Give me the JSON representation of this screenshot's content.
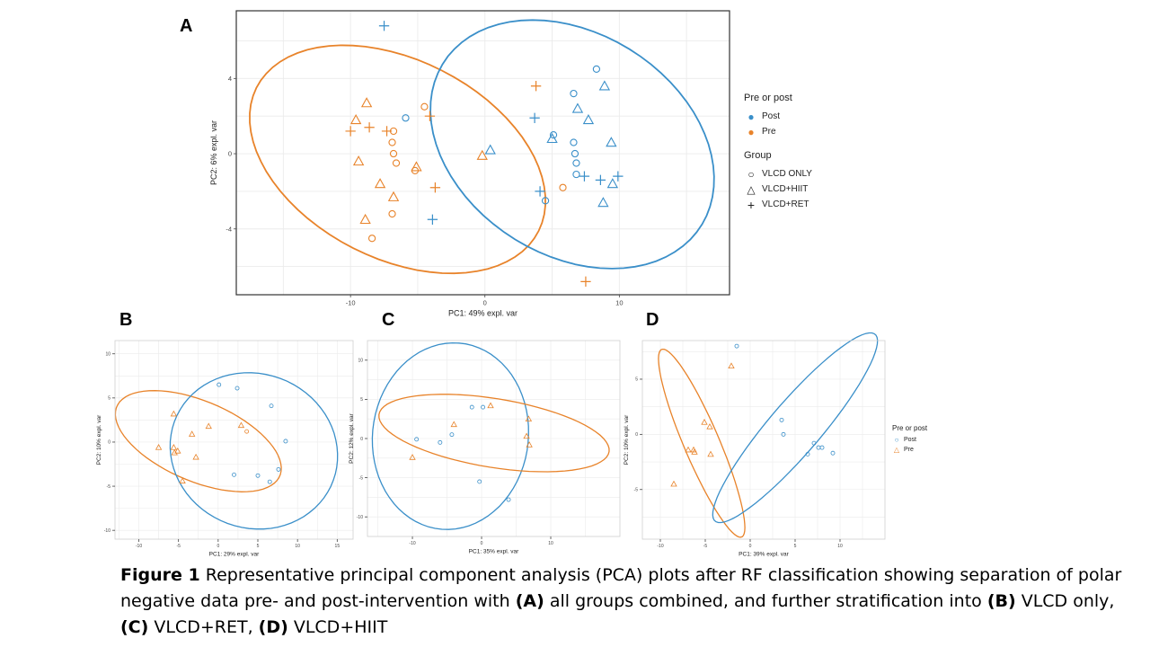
{
  "panel_labels": {
    "a": "A",
    "b": "B",
    "c": "C",
    "d": "D"
  },
  "caption": {
    "fig": "Figure 1",
    "t1": " Representative principal component analysis (PCA) plots after RF classification showing separation of polar negative data pre- and post-intervention with ",
    "la": "(A)",
    "t2": " all groups combined, and further stratification into ",
    "lb": "(B)",
    "t3": " VLCD only, ",
    "lc": "(C)",
    "t4": " VLCD+RET, ",
    "ld": "(D)",
    "t5": " VLCD+HIIT"
  },
  "legend_a": {
    "title1": "Pre or post",
    "post": "Post",
    "pre": "Pre",
    "title2": "Group",
    "g1": "VLCD ONLY",
    "g2": "VLCD+HIIT",
    "g3": "VLCD+RET"
  },
  "legend_d": {
    "title": "Pre or post",
    "post": "Post",
    "pre": "Pre"
  },
  "colors": {
    "post": "#3a8fc9",
    "pre": "#e8832a",
    "grid": "#ebebeb",
    "border": "#333333"
  },
  "chart_data": [
    {
      "id": "A",
      "type": "scatter",
      "xlabel": "PC1: 49% expl. var",
      "ylabel": "PC2: 6% expl. var",
      "xlim": [
        -18.5,
        18.2
      ],
      "ylim": [
        -7.5,
        7.6
      ],
      "xticks": [
        -10,
        0,
        10
      ],
      "yticks": [
        -4,
        0,
        4
      ],
      "grid": true,
      "legend": "right",
      "ellipses": [
        {
          "group": "Pre",
          "cx": -6.5,
          "cy": -0.3,
          "rx": 11.3,
          "ry": 5.5,
          "angle": -15
        },
        {
          "group": "Post",
          "cx": 6.5,
          "cy": 0.5,
          "rx": 10.8,
          "ry": 6.2,
          "angle": -15
        }
      ],
      "points": [
        {
          "group": "Post",
          "shape": "circle",
          "x": 8.3,
          "y": 4.5
        },
        {
          "group": "Post",
          "shape": "circle",
          "x": 6.6,
          "y": 3.2
        },
        {
          "group": "Post",
          "shape": "circle",
          "x": 5.1,
          "y": 1.0
        },
        {
          "group": "Post",
          "shape": "circle",
          "x": 6.6,
          "y": 0.6
        },
        {
          "group": "Post",
          "shape": "circle",
          "x": 6.7,
          "y": 0.0
        },
        {
          "group": "Post",
          "shape": "circle",
          "x": 6.8,
          "y": -0.5
        },
        {
          "group": "Post",
          "shape": "circle",
          "x": 6.8,
          "y": -1.1
        },
        {
          "group": "Post",
          "shape": "circle",
          "x": 4.5,
          "y": -2.5
        },
        {
          "group": "Post",
          "shape": "circle",
          "x": -5.9,
          "y": 1.9
        },
        {
          "group": "Post",
          "shape": "triangle",
          "x": 8.9,
          "y": 3.6
        },
        {
          "group": "Post",
          "shape": "triangle",
          "x": 6.9,
          "y": 2.4
        },
        {
          "group": "Post",
          "shape": "triangle",
          "x": 7.7,
          "y": 1.8
        },
        {
          "group": "Post",
          "shape": "triangle",
          "x": 5.0,
          "y": 0.8
        },
        {
          "group": "Post",
          "shape": "triangle",
          "x": 9.4,
          "y": 0.6
        },
        {
          "group": "Post",
          "shape": "triangle",
          "x": 0.4,
          "y": 0.2
        },
        {
          "group": "Post",
          "shape": "triangle",
          "x": 9.5,
          "y": -1.6
        },
        {
          "group": "Post",
          "shape": "triangle",
          "x": 8.8,
          "y": -2.6
        },
        {
          "group": "Post",
          "shape": "plus",
          "x": -7.5,
          "y": 6.8
        },
        {
          "group": "Post",
          "shape": "plus",
          "x": 3.7,
          "y": 1.9
        },
        {
          "group": "Post",
          "shape": "plus",
          "x": 7.4,
          "y": -1.2
        },
        {
          "group": "Post",
          "shape": "plus",
          "x": 8.6,
          "y": -1.4
        },
        {
          "group": "Post",
          "shape": "plus",
          "x": 9.9,
          "y": -1.2
        },
        {
          "group": "Post",
          "shape": "plus",
          "x": 4.1,
          "y": -2.0
        },
        {
          "group": "Post",
          "shape": "plus",
          "x": -3.9,
          "y": -3.5
        },
        {
          "group": "Pre",
          "shape": "circle",
          "x": -4.5,
          "y": 2.5
        },
        {
          "group": "Pre",
          "shape": "circle",
          "x": -6.8,
          "y": 1.2
        },
        {
          "group": "Pre",
          "shape": "circle",
          "x": -6.9,
          "y": 0.6
        },
        {
          "group": "Pre",
          "shape": "circle",
          "x": -6.8,
          "y": 0.0
        },
        {
          "group": "Pre",
          "shape": "circle",
          "x": -6.6,
          "y": -0.5
        },
        {
          "group": "Pre",
          "shape": "circle",
          "x": -5.2,
          "y": -0.9
        },
        {
          "group": "Pre",
          "shape": "circle",
          "x": -6.9,
          "y": -3.2
        },
        {
          "group": "Pre",
          "shape": "circle",
          "x": -8.4,
          "y": -4.5
        },
        {
          "group": "Pre",
          "shape": "circle",
          "x": 5.8,
          "y": -1.8
        },
        {
          "group": "Pre",
          "shape": "triangle",
          "x": -8.8,
          "y": 2.7
        },
        {
          "group": "Pre",
          "shape": "triangle",
          "x": -9.6,
          "y": 1.8
        },
        {
          "group": "Pre",
          "shape": "triangle",
          "x": -9.4,
          "y": -0.4
        },
        {
          "group": "Pre",
          "shape": "triangle",
          "x": -5.1,
          "y": -0.7
        },
        {
          "group": "Pre",
          "shape": "triangle",
          "x": -0.2,
          "y": -0.1
        },
        {
          "group": "Pre",
          "shape": "triangle",
          "x": -7.8,
          "y": -1.6
        },
        {
          "group": "Pre",
          "shape": "triangle",
          "x": -6.8,
          "y": -2.3
        },
        {
          "group": "Pre",
          "shape": "triangle",
          "x": -8.9,
          "y": -3.5
        },
        {
          "group": "Pre",
          "shape": "plus",
          "x": -10.0,
          "y": 1.2
        },
        {
          "group": "Pre",
          "shape": "plus",
          "x": -8.6,
          "y": 1.4
        },
        {
          "group": "Pre",
          "shape": "plus",
          "x": -7.3,
          "y": 1.2
        },
        {
          "group": "Pre",
          "shape": "plus",
          "x": -4.1,
          "y": 2.0
        },
        {
          "group": "Pre",
          "shape": "plus",
          "x": 3.8,
          "y": 3.6
        },
        {
          "group": "Pre",
          "shape": "plus",
          "x": -3.7,
          "y": -1.8
        },
        {
          "group": "Pre",
          "shape": "plus",
          "x": 7.5,
          "y": -6.8
        }
      ]
    },
    {
      "id": "B",
      "type": "scatter",
      "xlabel": "PC1: 29% expl. var",
      "ylabel": "PC2: 10% expl. var",
      "xlim": [
        -13,
        17
      ],
      "ylim": [
        -11,
        11.5
      ],
      "xticks": [
        -10,
        -5,
        0,
        5,
        10,
        15
      ],
      "yticks": [
        -10,
        -5,
        0,
        5,
        10
      ],
      "grid": true,
      "legend": "none",
      "ellipses": [
        {
          "group": "Pre",
          "cx": -2.5,
          "cy": 0.1,
          "rx": 11.0,
          "ry": 4.6,
          "angle": -20
        },
        {
          "group": "Post",
          "cx": 4.5,
          "cy": -1.0,
          "rx": 10.6,
          "ry": 8.8,
          "angle": -10
        }
      ],
      "points": [
        {
          "group": "Post",
          "shape": "circle",
          "x": 0.1,
          "y": 6.5
        },
        {
          "group": "Post",
          "shape": "circle",
          "x": 2.4,
          "y": 6.1
        },
        {
          "group": "Post",
          "shape": "circle",
          "x": 6.7,
          "y": 4.1
        },
        {
          "group": "Post",
          "shape": "circle",
          "x": 8.5,
          "y": 0.1
        },
        {
          "group": "Post",
          "shape": "circle",
          "x": 7.6,
          "y": -3.1
        },
        {
          "group": "Post",
          "shape": "circle",
          "x": 5.0,
          "y": -3.8
        },
        {
          "group": "Post",
          "shape": "circle",
          "x": 6.5,
          "y": -4.5
        },
        {
          "group": "Post",
          "shape": "circle",
          "x": 2.0,
          "y": -3.7
        },
        {
          "group": "Pre",
          "shape": "triangle",
          "x": -5.6,
          "y": 3.2
        },
        {
          "group": "Pre",
          "shape": "triangle",
          "x": -1.2,
          "y": 1.8
        },
        {
          "group": "Pre",
          "shape": "triangle",
          "x": 2.9,
          "y": 1.9
        },
        {
          "group": "Pre",
          "shape": "triangle",
          "x": -3.3,
          "y": 0.9
        },
        {
          "group": "Pre",
          "shape": "triangle",
          "x": -7.5,
          "y": -0.6
        },
        {
          "group": "Pre",
          "shape": "triangle",
          "x": -5.6,
          "y": -0.6
        },
        {
          "group": "Pre",
          "shape": "triangle",
          "x": -5.1,
          "y": -1.0
        },
        {
          "group": "Pre",
          "shape": "triangle",
          "x": -5.5,
          "y": -1.2
        },
        {
          "group": "Pre",
          "shape": "triangle",
          "x": -2.8,
          "y": -1.7
        },
        {
          "group": "Pre",
          "shape": "triangle",
          "x": -4.5,
          "y": -4.4
        },
        {
          "group": "Pre",
          "shape": "circle",
          "x": 3.6,
          "y": 1.2
        }
      ]
    },
    {
      "id": "C",
      "type": "scatter",
      "xlabel": "PC1: 35% expl. var",
      "ylabel": "PC2: 12% expl. var",
      "xlim": [
        -16.5,
        20
      ],
      "ylim": [
        -12.5,
        12.5
      ],
      "xticks": [
        -10,
        0,
        10
      ],
      "yticks": [
        -10,
        -5,
        0,
        5,
        10
      ],
      "grid": true,
      "legend": "none",
      "ellipses": [
        {
          "group": "Post",
          "cx": -4.5,
          "cy": 0.3,
          "rx": 11.2,
          "ry": 12.0,
          "angle": -20
        },
        {
          "group": "Pre",
          "cx": 1.8,
          "cy": 0.7,
          "rx": 16.8,
          "ry": 4.4,
          "angle": -8
        }
      ],
      "points": [
        {
          "group": "Post",
          "shape": "circle",
          "x": -1.4,
          "y": 4.0
        },
        {
          "group": "Post",
          "shape": "circle",
          "x": 0.2,
          "y": 4.0
        },
        {
          "group": "Post",
          "shape": "circle",
          "x": -4.3,
          "y": 0.5
        },
        {
          "group": "Post",
          "shape": "circle",
          "x": -6.0,
          "y": -0.5
        },
        {
          "group": "Post",
          "shape": "circle",
          "x": -9.4,
          "y": -0.1
        },
        {
          "group": "Post",
          "shape": "circle",
          "x": -0.3,
          "y": -5.5
        },
        {
          "group": "Post",
          "shape": "circle",
          "x": 3.9,
          "y": -7.8
        },
        {
          "group": "Pre",
          "shape": "triangle",
          "x": 1.3,
          "y": 4.2
        },
        {
          "group": "Pre",
          "shape": "triangle",
          "x": 6.8,
          "y": 2.5
        },
        {
          "group": "Pre",
          "shape": "triangle",
          "x": -4.0,
          "y": 1.8
        },
        {
          "group": "Pre",
          "shape": "triangle",
          "x": 6.5,
          "y": 0.3
        },
        {
          "group": "Pre",
          "shape": "triangle",
          "x": 6.9,
          "y": -0.8
        },
        {
          "group": "Pre",
          "shape": "triangle",
          "x": -10.0,
          "y": -2.4
        }
      ]
    },
    {
      "id": "D",
      "type": "scatter",
      "xlabel": "PC1: 39% expl. var",
      "ylabel": "PC2: 10% expl. var",
      "xlim": [
        -12,
        15
      ],
      "ylim": [
        -9.5,
        8.5
      ],
      "xticks": [
        -10,
        -5,
        0,
        5,
        10
      ],
      "yticks": [
        -5,
        0,
        5
      ],
      "grid": true,
      "legend": "right",
      "ellipses": [
        {
          "group": "Pre",
          "cx": -5.4,
          "cy": -0.8,
          "rx": 9.6,
          "ry": 1.9,
          "angle": -62
        },
        {
          "group": "Post",
          "cx": 5.0,
          "cy": 0.6,
          "rx": 12.3,
          "ry": 2.6,
          "angle": 43
        }
      ],
      "points": [
        {
          "group": "Post",
          "shape": "circle",
          "x": -1.5,
          "y": 8.0
        },
        {
          "group": "Post",
          "shape": "circle",
          "x": 3.5,
          "y": 1.3
        },
        {
          "group": "Post",
          "shape": "circle",
          "x": 3.7,
          "y": 0.0
        },
        {
          "group": "Post",
          "shape": "circle",
          "x": 7.1,
          "y": -0.8
        },
        {
          "group": "Post",
          "shape": "circle",
          "x": 7.6,
          "y": -1.2
        },
        {
          "group": "Post",
          "shape": "circle",
          "x": 8.0,
          "y": -1.2
        },
        {
          "group": "Post",
          "shape": "circle",
          "x": 9.2,
          "y": -1.7
        },
        {
          "group": "Post",
          "shape": "circle",
          "x": 6.4,
          "y": -1.8
        },
        {
          "group": "Pre",
          "shape": "triangle",
          "x": -2.1,
          "y": 6.2
        },
        {
          "group": "Pre",
          "shape": "triangle",
          "x": -5.1,
          "y": 1.1
        },
        {
          "group": "Pre",
          "shape": "triangle",
          "x": -4.5,
          "y": 0.7
        },
        {
          "group": "Pre",
          "shape": "triangle",
          "x": -6.9,
          "y": -1.4
        },
        {
          "group": "Pre",
          "shape": "triangle",
          "x": -6.3,
          "y": -1.4
        },
        {
          "group": "Pre",
          "shape": "triangle",
          "x": -6.2,
          "y": -1.6
        },
        {
          "group": "Pre",
          "shape": "triangle",
          "x": -4.4,
          "y": -1.8
        },
        {
          "group": "Pre",
          "shape": "triangle",
          "x": -8.5,
          "y": -4.5
        }
      ]
    }
  ]
}
